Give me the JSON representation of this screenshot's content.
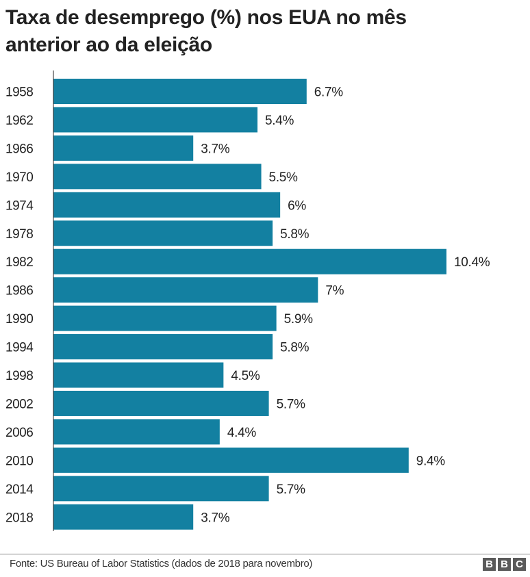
{
  "chart_data": {
    "type": "bar",
    "orientation": "horizontal",
    "title": "Taxa de desemprego (%) nos EUA no mês anterior ao da eleição",
    "categories": [
      "1958",
      "1962",
      "1966",
      "1970",
      "1974",
      "1978",
      "1982",
      "1986",
      "1990",
      "1994",
      "1998",
      "2002",
      "2006",
      "2010",
      "2014",
      "2018"
    ],
    "values": [
      6.7,
      5.4,
      3.7,
      5.5,
      6,
      5.8,
      10.4,
      7,
      5.9,
      5.8,
      4.5,
      5.7,
      4.4,
      9.4,
      5.7,
      3.7
    ],
    "data_labels": [
      "6.7%",
      "5.4%",
      "3.7%",
      "5.5%",
      "6%",
      "5.8%",
      "10.4%",
      "7%",
      "5.9%",
      "5.8%",
      "4.5%",
      "5.7%",
      "4.4%",
      "9.4%",
      "5.7%",
      "3.7%"
    ],
    "xlim": [
      0,
      10.4
    ],
    "grid": false,
    "bar_color": "#1380A1"
  },
  "footer": {
    "source": "Fonte: US Bureau of Labor Statistics (dados de 2018 para novembro)",
    "logo_letters": [
      "B",
      "B",
      "C"
    ]
  }
}
